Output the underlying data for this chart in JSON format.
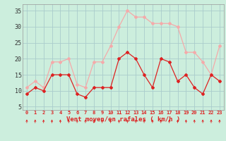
{
  "x": [
    0,
    1,
    2,
    3,
    4,
    5,
    6,
    7,
    8,
    9,
    10,
    11,
    12,
    13,
    14,
    15,
    16,
    17,
    18,
    19,
    20,
    21,
    22,
    23
  ],
  "wind_avg": [
    9,
    11,
    10,
    15,
    15,
    15,
    9,
    8,
    11,
    11,
    11,
    20,
    22,
    20,
    15,
    11,
    20,
    19,
    13,
    15,
    11,
    9,
    15,
    13
  ],
  "wind_gust": [
    11,
    13,
    11,
    19,
    19,
    20,
    12,
    11,
    19,
    19,
    24,
    30,
    35,
    33,
    33,
    31,
    31,
    31,
    30,
    22,
    22,
    19,
    15,
    24
  ],
  "avg_color": "#dd2222",
  "gust_color": "#f4aaaa",
  "bg_color": "#cceedd",
  "grid_color": "#aacccc",
  "ylabel_ticks": [
    5,
    10,
    15,
    20,
    25,
    30,
    35
  ],
  "xlabel": "Vent moyen/en rafales ( km/h )",
  "ylim": [
    4,
    37
  ],
  "xlim": [
    -0.5,
    23.5
  ],
  "arrow_color": "#dd2222",
  "xtick_fontsize": 5.0,
  "ytick_fontsize": 6.0,
  "xlabel_fontsize": 6.5
}
